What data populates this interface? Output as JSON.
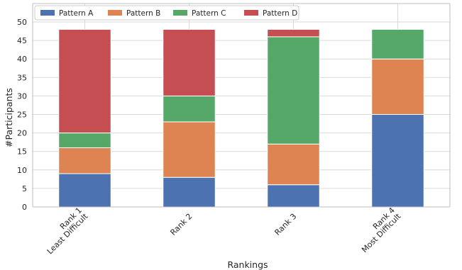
{
  "chart_data": {
    "type": "bar",
    "stacked": true,
    "categories": [
      [
        "Rank 1",
        "Least Difficult"
      ],
      [
        "Rank 2"
      ],
      [
        "Rank 3"
      ],
      [
        "Rank 4",
        "Most Difficult"
      ]
    ],
    "series": [
      {
        "name": "Pattern A",
        "color": "#4c72b0",
        "values": [
          9,
          8,
          6,
          25
        ]
      },
      {
        "name": "Pattern B",
        "color": "#dd8452",
        "values": [
          7,
          15,
          11,
          15
        ]
      },
      {
        "name": "Pattern C",
        "color": "#55a868",
        "values": [
          4,
          7,
          29,
          8
        ]
      },
      {
        "name": "Pattern D",
        "color": "#c44e52",
        "values": [
          28,
          18,
          2,
          0
        ]
      }
    ],
    "xlabel": "Rankings",
    "ylabel": "#Participants",
    "ylim": [
      0,
      50
    ],
    "yticks": [
      0,
      5,
      10,
      15,
      20,
      25,
      30,
      35,
      40,
      45,
      50
    ],
    "grid": true,
    "legend_position": "top-left",
    "legend_columns": 4
  }
}
